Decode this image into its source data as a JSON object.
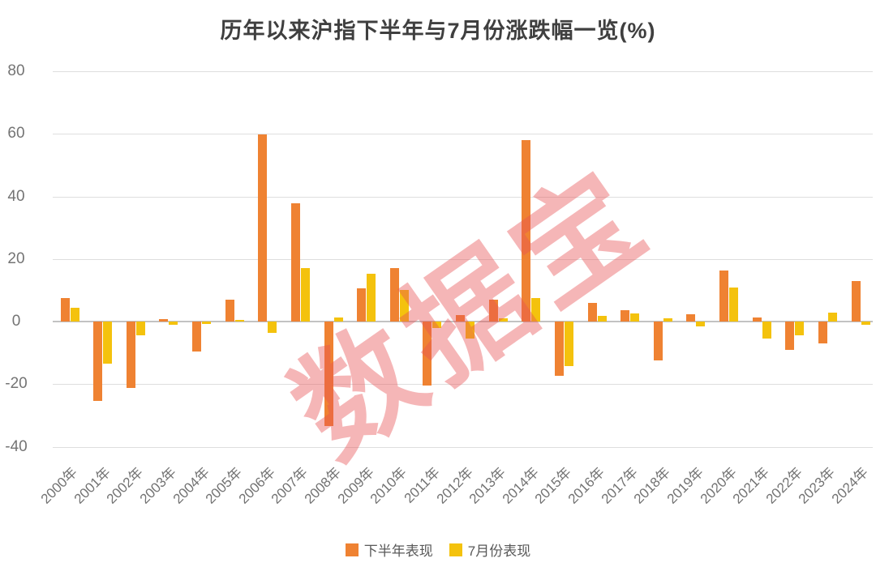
{
  "title": "历年以来沪指下半年与7月份涨跌幅一览(%)",
  "watermark": "数据宝",
  "legend": [
    {
      "label": "下半年表现",
      "color": "#EF8232"
    },
    {
      "label": "7月份表现",
      "color": "#F4C20D"
    }
  ],
  "colors": {
    "series_h2": "#EF8232",
    "series_july": "#F4C20D",
    "title_text": "#3F3F3F",
    "axis_text": "#747474",
    "gridline": "#DEDEDE",
    "zero_line": "#C2C2C2",
    "watermark": "rgba(232,80,84,0.42)"
  },
  "chart_data": {
    "type": "bar",
    "title": "历年以来沪指下半年与7月份涨跌幅一览(%)",
    "xlabel": "",
    "ylabel": "",
    "grid": true,
    "legend_position": "bottom",
    "ylim": [
      -40,
      80
    ],
    "yticks": [
      80,
      60,
      40,
      20,
      0,
      -20,
      -40
    ],
    "categories": [
      "2000年",
      "2001年",
      "2002年",
      "2003年",
      "2004年",
      "2005年",
      "2006年",
      "2007年",
      "2008年",
      "2009年",
      "2010年",
      "2011年",
      "2012年",
      "2013年",
      "2014年",
      "2015年",
      "2016年",
      "2017年",
      "2018年",
      "2019年",
      "2020年",
      "2021年",
      "2022年",
      "2023年",
      "2024年"
    ],
    "series": [
      {
        "name": "下半年表现",
        "color": "#EF8232",
        "values": [
          7.5,
          -25.5,
          -21.3,
          0.8,
          -9.5,
          7.0,
          59.9,
          37.7,
          -33.5,
          10.7,
          17.1,
          -20.4,
          2.0,
          7.0,
          57.9,
          -17.3,
          5.9,
          3.6,
          -12.3,
          2.4,
          16.4,
          1.4,
          -9.1,
          -7.0,
          13.0
        ]
      },
      {
        "name": "7月份表现",
        "color": "#F4C20D",
        "values": [
          4.5,
          -13.5,
          -4.5,
          -1.0,
          -0.9,
          0.5,
          -3.5,
          17.0,
          1.4,
          15.3,
          10.0,
          -2.2,
          -5.5,
          1.0,
          7.5,
          -14.3,
          1.7,
          2.5,
          1.0,
          -1.6,
          10.9,
          -5.4,
          -4.3,
          2.8,
          -1.0
        ]
      }
    ]
  }
}
